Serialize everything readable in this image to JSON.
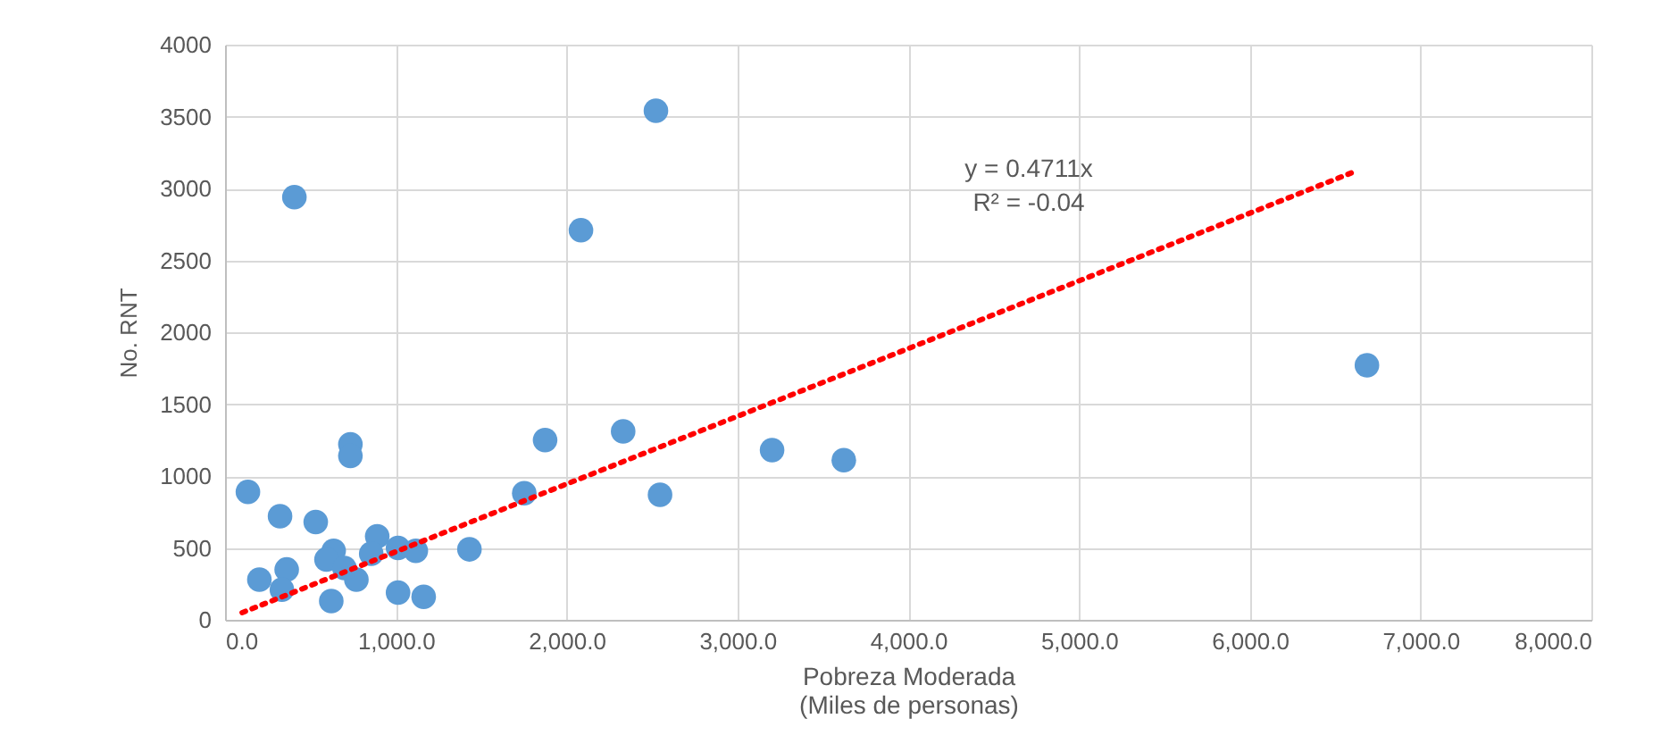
{
  "chart_data": {
    "type": "scatter",
    "xlabel": "Pobreza Moderada\n(Miles de personas)",
    "ylabel": "No. RNT",
    "xlim": [
      0,
      8000
    ],
    "ylim": [
      0,
      4000
    ],
    "xticks": [
      {
        "value": 0,
        "label": "0.0"
      },
      {
        "value": 1000,
        "label": "1,000.0"
      },
      {
        "value": 2000,
        "label": "2,000.0"
      },
      {
        "value": 3000,
        "label": "3,000.0"
      },
      {
        "value": 4000,
        "label": "4,000.0"
      },
      {
        "value": 5000,
        "label": "5,000.0"
      },
      {
        "value": 6000,
        "label": "6,000.0"
      },
      {
        "value": 7000,
        "label": "7,000.0"
      },
      {
        "value": 8000,
        "label": "8,000.0"
      }
    ],
    "yticks": [
      0,
      500,
      1000,
      1500,
      2000,
      2500,
      3000,
      3500,
      4000
    ],
    "grid": true,
    "marker": "circle",
    "series": [
      {
        "color": "#5b9bd5",
        "x": [
          134,
          322,
          531,
          201,
          361,
          333,
          622,
          636,
          594,
          769,
          699,
          891,
          856,
          1013,
          1117,
          1013,
          1163,
          1431,
          1752,
          1874,
          2331,
          2547,
          3203,
          3623,
          6686,
          734,
          734,
          406,
          2084,
          2523
        ],
        "values": [
          890,
          720,
          680,
          280,
          350,
          210,
          130,
          480,
          420,
          280,
          360,
          580,
          460,
          500,
          480,
          190,
          160,
          490,
          880,
          1250,
          1310,
          870,
          1180,
          1110,
          1770,
          1220,
          1140,
          2940,
          2710,
          3540
        ]
      },
      {
        "type": "line",
        "color": "#ff0000",
        "line_style": "dotted",
        "marker": "none",
        "x": [
          100,
          6620
        ],
        "values": [
          50,
          3120
        ]
      }
    ],
    "annotations": [
      "y = 0.4711x",
      "R² = -0.04"
    ]
  }
}
